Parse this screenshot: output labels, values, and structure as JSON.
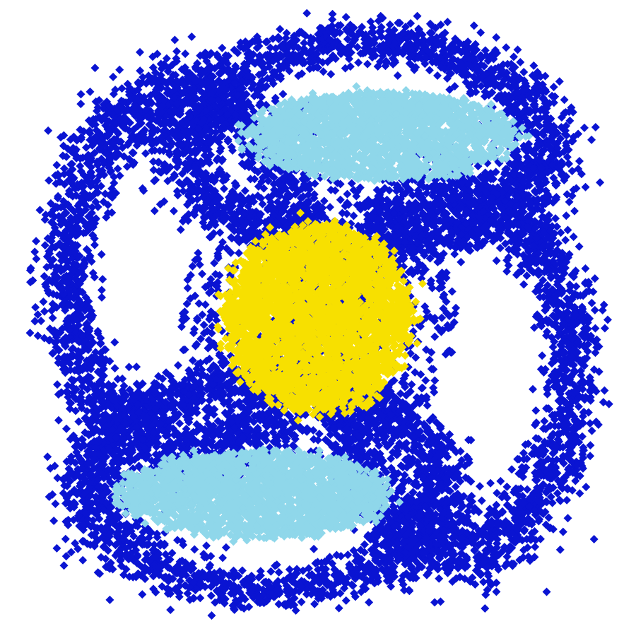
{
  "chart_data": {
    "type": "scatter",
    "title": "",
    "xlabel": "",
    "ylabel": "",
    "xlim": [
      -1.05,
      1.05
    ],
    "ylim": [
      -1.05,
      1.05
    ],
    "grid": false,
    "legend": "none",
    "marker": "diamond",
    "series": [
      {
        "color": "#0a14d2",
        "clusters": [
          {
            "shape": "ring",
            "cx": -0.45,
            "cy": 0.15,
            "rx": 0.42,
            "ry": 0.62,
            "spread": 0.12,
            "count": 2600
          },
          {
            "shape": "ring",
            "cx": 0.48,
            "cy": -0.18,
            "rx": 0.4,
            "ry": 0.62,
            "spread": 0.12,
            "count": 2600
          },
          {
            "shape": "ring",
            "cx": 0.16,
            "cy": 0.6,
            "rx": 0.62,
            "ry": 0.36,
            "spread": 0.11,
            "count": 2200
          },
          {
            "shape": "ring",
            "cx": -0.18,
            "cy": -0.58,
            "rx": 0.6,
            "ry": 0.36,
            "spread": 0.11,
            "count": 2200
          },
          {
            "shape": "disk",
            "cx": 0.0,
            "cy": 0.0,
            "r": 0.48,
            "count": 900
          }
        ]
      },
      {
        "color": "#8fd7ea",
        "clusters": [
          {
            "shape": "blob",
            "cx": 0.22,
            "cy": 0.63,
            "rx": 0.46,
            "ry": 0.15,
            "count": 2200
          },
          {
            "shape": "blob",
            "cx": -0.22,
            "cy": -0.61,
            "rx": 0.46,
            "ry": 0.15,
            "count": 2200
          }
        ]
      },
      {
        "color": "#f7e000",
        "clusters": [
          {
            "shape": "blob",
            "cx": 0.0,
            "cy": 0.0,
            "rx": 0.32,
            "ry": 0.32,
            "count": 3200
          }
        ]
      }
    ]
  }
}
